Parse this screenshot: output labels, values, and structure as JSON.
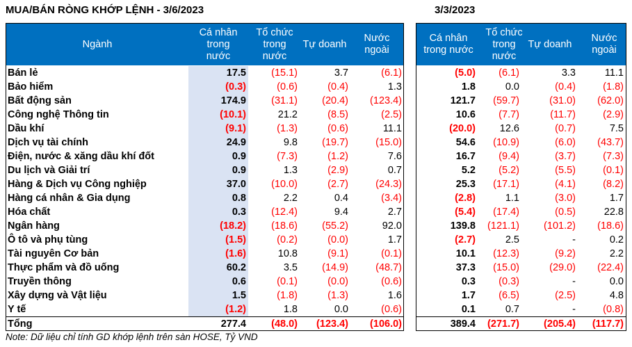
{
  "title_left": "MUA/BÁN RÒNG KHỚP LỆNH - 3/6/2023",
  "title_right": "3/3/2023",
  "headers": {
    "sector": "Ngành",
    "individual": "Cá nhân\ntrong\nnước",
    "institution": "Tổ chức\ntrong\nnước",
    "proprietary": "Tự doanh",
    "foreign": "Nước\nngoài",
    "individual_right": "Cá nhân\ntrong nước",
    "institution_right": "Tổ chức\ntrong\nnước",
    "proprietary_right": "Tự doanh",
    "foreign_right": "Nước\nngoài"
  },
  "rows": [
    {
      "name": "Bán lẻ",
      "l": [
        "17.5",
        "(15.1)",
        "3.7",
        "(6.1)"
      ],
      "r": [
        "(5.0)",
        "(6.1)",
        "3.3",
        "11.1"
      ]
    },
    {
      "name": "Bảo hiểm",
      "l": [
        "(0.3)",
        "(0.6)",
        "(0.4)",
        "1.3"
      ],
      "r": [
        "1.8",
        "0.0",
        "(0.4)",
        "(1.8)"
      ]
    },
    {
      "name": "Bất động sản",
      "l": [
        "174.9",
        "(31.1)",
        "(20.4)",
        "(123.4)"
      ],
      "r": [
        "121.7",
        "(59.7)",
        "(31.0)",
        "(62.0)"
      ]
    },
    {
      "name": "Công nghệ Thông tin",
      "l": [
        "(10.1)",
        "21.2",
        "(8.5)",
        "(2.5)"
      ],
      "r": [
        "10.6",
        "(7.7)",
        "(11.7)",
        "(2.9)"
      ]
    },
    {
      "name": "Dầu khí",
      "l": [
        "(9.1)",
        "(1.3)",
        "(0.6)",
        "11.1"
      ],
      "r": [
        "(20.0)",
        "12.6",
        "(0.7)",
        "7.5"
      ]
    },
    {
      "name": "Dịch vụ tài chính",
      "l": [
        "24.9",
        "9.8",
        "(19.7)",
        "(15.0)"
      ],
      "r": [
        "54.6",
        "(10.9)",
        "(6.0)",
        "(43.7)"
      ]
    },
    {
      "name": "Điện, nước & xăng dầu khí đốt",
      "l": [
        "0.9",
        "(7.3)",
        "(1.2)",
        "7.6"
      ],
      "r": [
        "16.7",
        "(9.4)",
        "(3.7)",
        "(7.3)"
      ]
    },
    {
      "name": "Du lịch và Giải trí",
      "l": [
        "0.9",
        "1.3",
        "(2.9)",
        "0.7"
      ],
      "r": [
        "5.2",
        "(5.2)",
        "(5.5)",
        "(0.1)"
      ]
    },
    {
      "name": "Hàng & Dịch vụ Công nghiệp",
      "l": [
        "37.0",
        "(10.0)",
        "(2.7)",
        "(24.3)"
      ],
      "r": [
        "25.3",
        "(17.1)",
        "(4.1)",
        "(8.2)"
      ]
    },
    {
      "name": "Hàng cá nhân & Gia dụng",
      "l": [
        "0.8",
        "2.2",
        "0.4",
        "(3.4)"
      ],
      "r": [
        "(2.8)",
        "1.1",
        "(3.0)",
        "1.7"
      ]
    },
    {
      "name": "Hóa chất",
      "l": [
        "0.3",
        "(12.4)",
        "9.4",
        "2.7"
      ],
      "r": [
        "(5.4)",
        "(17.4)",
        "(0.5)",
        "22.8"
      ]
    },
    {
      "name": "Ngân hàng",
      "l": [
        "(18.2)",
        "(18.6)",
        "(55.2)",
        "92.0"
      ],
      "r": [
        "139.8",
        "(121.1)",
        "(101.2)",
        "(18.6)"
      ]
    },
    {
      "name": "Ô tô và phụ tùng",
      "l": [
        "(1.5)",
        "(0.2)",
        "(0.0)",
        "1.7"
      ],
      "r": [
        "(2.7)",
        "2.5",
        "-",
        "0.2"
      ]
    },
    {
      "name": "Tài nguyên Cơ bản",
      "l": [
        "(1.6)",
        "10.8",
        "(9.1)",
        "(0.1)"
      ],
      "r": [
        "10.1",
        "(12.3)",
        "(9.2)",
        "2.2"
      ]
    },
    {
      "name": "Thực phẩm và đồ uống",
      "l": [
        "60.2",
        "3.5",
        "(14.9)",
        "(48.7)"
      ],
      "r": [
        "37.3",
        "(15.0)",
        "(29.0)",
        "(22.4)"
      ]
    },
    {
      "name": "Truyền thông",
      "l": [
        "0.6",
        "(0.1)",
        "(0.0)",
        "(0.6)"
      ],
      "r": [
        "0.3",
        "(0.3)",
        "-",
        "0.0"
      ]
    },
    {
      "name": "Xây dựng và Vật liệu",
      "l": [
        "1.5",
        "(1.8)",
        "(1.3)",
        "1.6"
      ],
      "r": [
        "1.7",
        "(6.5)",
        "(2.5)",
        "4.8"
      ]
    },
    {
      "name": "Y tế",
      "l": [
        "(1.2)",
        "1.8",
        "0.0",
        "(0.6)"
      ],
      "r": [
        "0.1",
        "0.7",
        "-",
        "(0.8)"
      ]
    }
  ],
  "total": {
    "name": "Tổng",
    "l": [
      "277.4",
      "(48.0)",
      "(123.4)",
      "(106.0)"
    ],
    "r": [
      "389.4",
      "(271.7)",
      "(205.4)",
      "(117.7)"
    ]
  },
  "note": "Note: Dữ liệu chỉ tính GD khớp lệnh trên sàn HOSE, Tỷ VND",
  "colors": {
    "header_bg": "#0070c0",
    "highlight": "#dae3f3",
    "negative": "#ff0000"
  }
}
